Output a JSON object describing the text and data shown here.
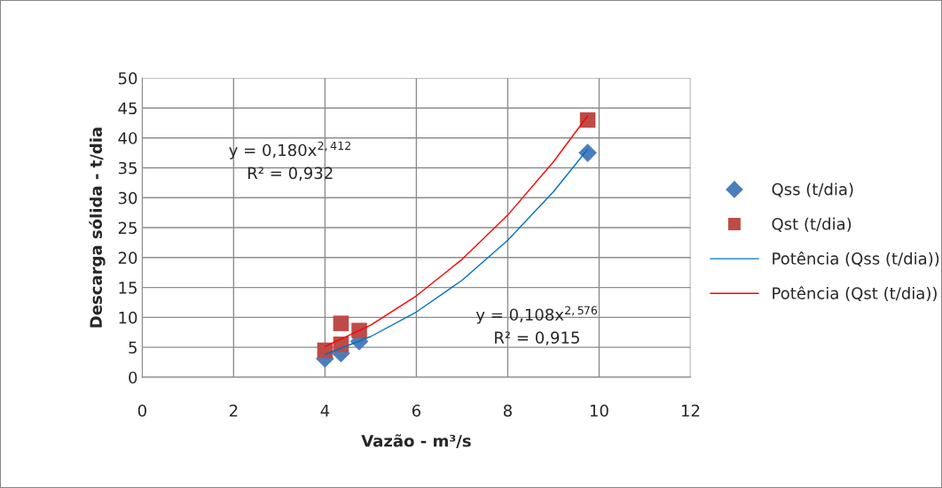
{
  "chart_data": {
    "type": "scatter",
    "xlabel": "Vazão - m³/s",
    "ylabel": "Descarga sólida - t/dia",
    "xlim": [
      0,
      12
    ],
    "xticks": [
      0,
      2,
      4,
      6,
      8,
      10,
      12
    ],
    "ylim": [
      0,
      50
    ],
    "yticks": [
      0,
      5,
      10,
      15,
      20,
      25,
      30,
      35,
      40,
      45,
      50
    ],
    "grid": true,
    "legend": "right",
    "annotations": [
      "y = 0,180x$^{2,412}$\nR² = 0,932",
      "y = 0,108x$^{2,576}$\nR² = 0,915"
    ],
    "series": [
      {
        "name": "Qss (t/dia)",
        "marker": "diamond",
        "color": "#4a7ebb",
        "x": [
          4.0,
          4.35,
          4.75,
          9.75
        ],
        "values": [
          3.1,
          4.0,
          6.0,
          37.5
        ]
      },
      {
        "name": "Qst (t/dia)",
        "marker": "square",
        "color": "#be4b48",
        "x": [
          4.0,
          4.35,
          4.35,
          4.75,
          9.75
        ],
        "values": [
          4.5,
          5.5,
          9.0,
          7.8,
          43.0
        ]
      },
      {
        "name": "Potência (Qss (t/dia))",
        "type": "line",
        "marker": "none",
        "color": "#0070c0",
        "x": [
          4,
          5,
          6,
          7,
          8,
          9,
          9.75
        ],
        "values": [
          3.8,
          6.8,
          10.9,
          16.2,
          22.9,
          31.0,
          38.1
        ]
      },
      {
        "name": "Potência (Qst (t/dia))",
        "type": "line",
        "marker": "none",
        "color": "#ff0000",
        "x": [
          4,
          5,
          6,
          7,
          8,
          9,
          9.75
        ],
        "values": [
          5.1,
          8.7,
          13.6,
          19.7,
          27.1,
          36.0,
          43.7
        ]
      }
    ]
  }
}
